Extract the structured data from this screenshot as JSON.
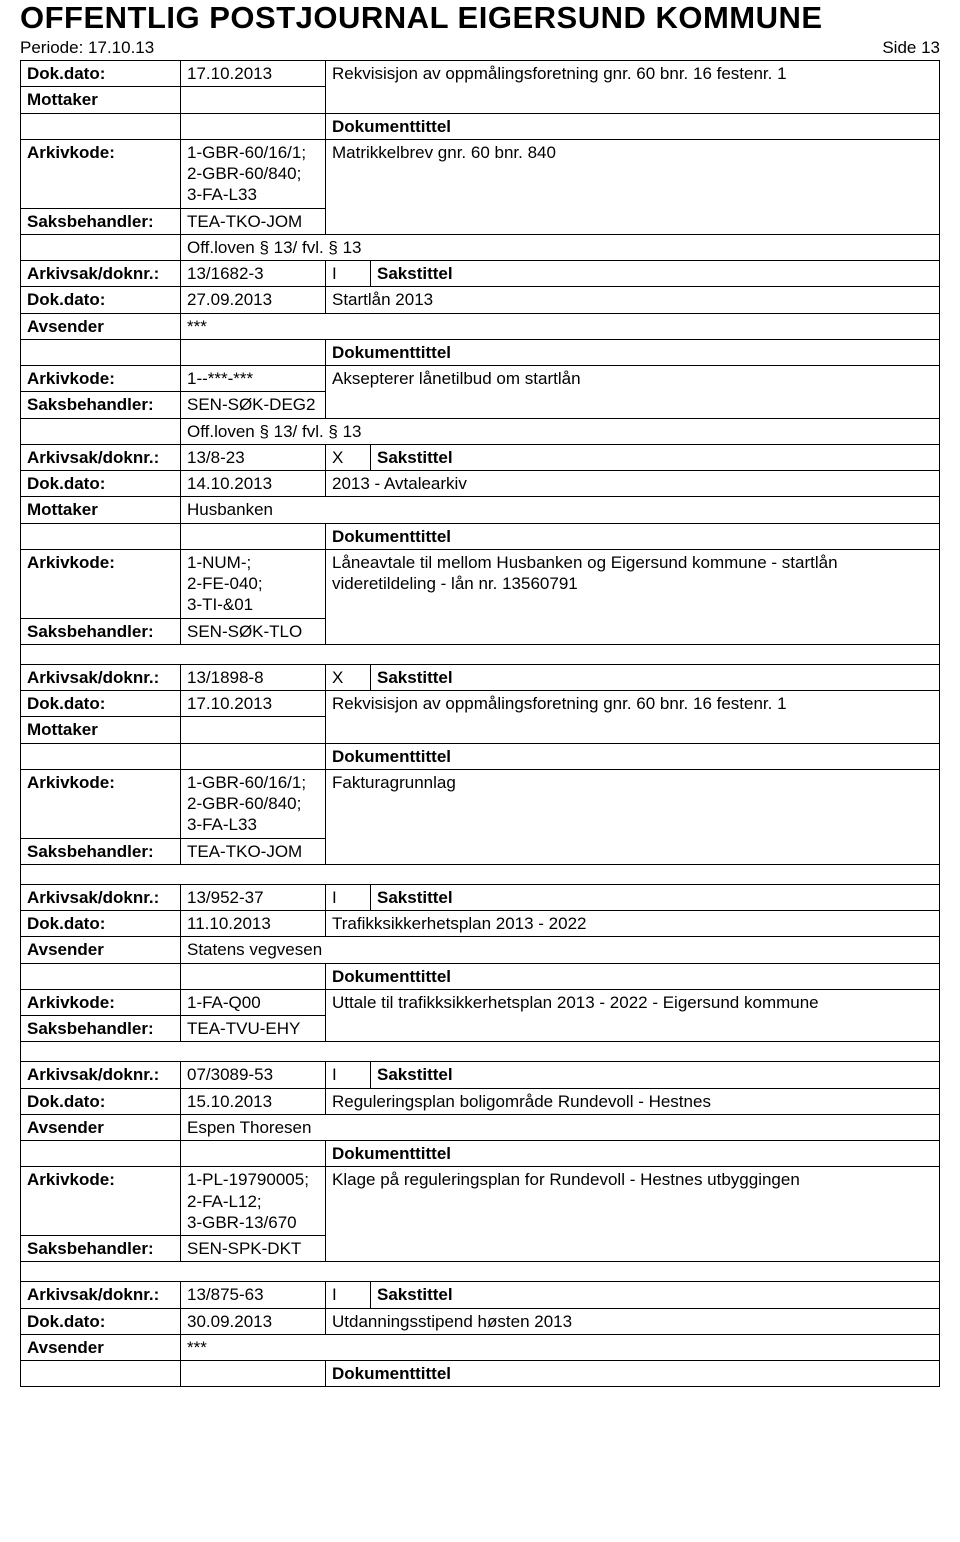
{
  "header": {
    "title": "OFFENTLIG POSTJOURNAL EIGERSUND KOMMUNE",
    "period_label": "Periode: 17.10.13",
    "side_label": "Side 13"
  },
  "labels": {
    "dokdato": "Dok.dato:",
    "mottaker": "Mottaker",
    "avsender": "Avsender",
    "dokumenttittel": "Dokumenttittel",
    "arkivkode": "Arkivkode:",
    "saksbehandler": "Saksbehandler:",
    "arkivsak": "Arkivsak/doknr.:",
    "sakstittel": "Sakstittel"
  },
  "entries": [
    {
      "dokdato": "17.10.2013",
      "sak_right": "Rekvisisjon av oppmålingsforetning gnr. 60 bnr. 16 festenr. 1",
      "party_label": "Mottaker",
      "party_value": "",
      "arkivkode": "1-GBR-60/16/1;\n2-GBR-60/840;\n3-FA-L33",
      "doktittel": "Matrikkelbrev gnr. 60 bnr. 840",
      "saksbehandler": "TEA-TKO-JOM",
      "extra_row": {
        "value": "Off.loven § 13/ fvl. § 13"
      },
      "arkivsak": "13/1682-3",
      "io": "I"
    },
    {
      "dokdato": "27.09.2013",
      "sak_right": "Startlån 2013",
      "party_label": "Avsender",
      "party_value": "***",
      "arkivkode": "1--***-***",
      "doktittel": "Aksepterer lånetilbud om startlån",
      "saksbehandler": "SEN-SØK-DEG2",
      "extra_row": {
        "value": "Off.loven § 13/ fvl. § 13"
      },
      "arkivsak": "13/8-23",
      "io": "X"
    },
    {
      "dokdato": "14.10.2013",
      "sak_right": "2013 - Avtalearkiv",
      "party_label": "Mottaker",
      "party_value": "Husbanken",
      "arkivkode": "1-NUM-;\n2-FE-040;\n3-TI-&01",
      "doktittel": "Låneavtale til mellom Husbanken og Eigersund kommune - startlån videretildeling - lån nr. 13560791",
      "saksbehandler": "SEN-SØK-TLO",
      "arkivsak": "13/1898-8",
      "io": "X",
      "spacer_before_arkivsak": true
    },
    {
      "dokdato": "17.10.2013",
      "sak_right": "Rekvisisjon av oppmålingsforetning gnr. 60 bnr. 16 festenr. 1",
      "party_label": "Mottaker",
      "party_value": "",
      "arkivkode": "1-GBR-60/16/1;\n2-GBR-60/840;\n3-FA-L33",
      "doktittel": "Fakturagrunnlag",
      "saksbehandler": "TEA-TKO-JOM",
      "arkivsak": "13/952-37",
      "io": "I",
      "spacer_before_arkivsak": true
    },
    {
      "dokdato": "11.10.2013",
      "sak_right": "Trafikksikkerhetsplan 2013 - 2022",
      "party_label": "Avsender",
      "party_value": "Statens vegvesen",
      "arkivkode": "1-FA-Q00",
      "doktittel": "Uttale til trafikksikkerhetsplan 2013 - 2022 - Eigersund kommune",
      "saksbehandler": "TEA-TVU-EHY",
      "arkivsak": "07/3089-53",
      "io": "I",
      "spacer_before_arkivsak": true
    },
    {
      "dokdato": "15.10.2013",
      "sak_right": "Reguleringsplan boligområde Rundevoll - Hestnes",
      "party_label": "Avsender",
      "party_value": "Espen Thoresen",
      "arkivkode": "1-PL-19790005;\n2-FA-L12;\n3-GBR-13/670",
      "doktittel": "Klage på reguleringsplan for Rundevoll - Hestnes utbyggingen",
      "saksbehandler": "SEN-SPK-DKT",
      "arkivsak": "13/875-63",
      "io": "I",
      "spacer_before_arkivsak": true
    },
    {
      "dokdato": "30.09.2013",
      "sak_right": "Utdanningsstipend høsten 2013",
      "party_label": "Avsender",
      "party_value": "***",
      "only_header_and_doktittel": true
    }
  ],
  "style": {
    "background_color": "#ffffff",
    "border_color": "#000000",
    "title_fontsize": 31,
    "body_fontsize": 17,
    "col_widths": {
      "c1": 160,
      "c2": 145,
      "c3": 45
    }
  }
}
